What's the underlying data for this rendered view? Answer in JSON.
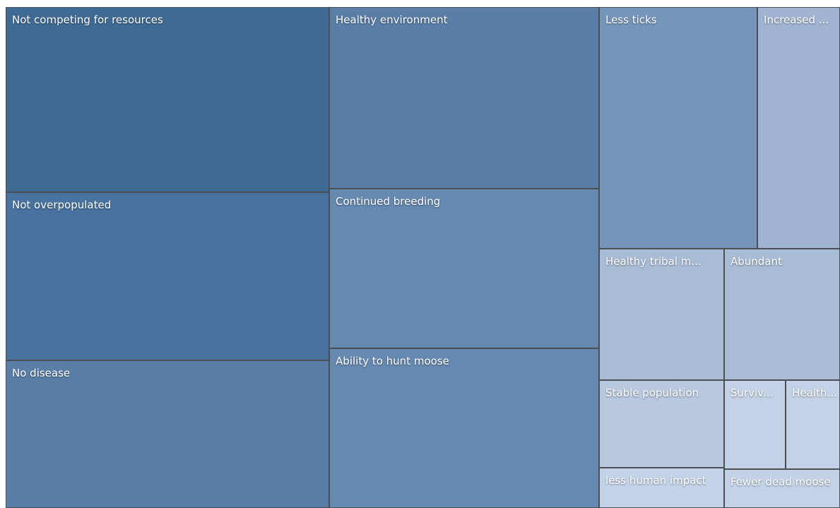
{
  "chart_data": {
    "type": "treemap",
    "categories": [
      "Not competing for resources",
      "Not overpopulated",
      "No disease",
      "Healthy environment",
      "Continued breeding",
      "Ability to hunt moose",
      "Less ticks",
      "Increased ...",
      "Healthy tribal m...",
      "Abundant",
      "Stable population",
      "less human impact",
      "Surviv...",
      "Health...",
      "Fewer dead moose"
    ],
    "values": [
      120000,
      109000,
      95700,
      98200,
      86300,
      86300,
      76600,
      40000,
      32900,
      30500,
      21900,
      10100,
      11000,
      9700,
      9000
    ],
    "colors": [
      "#3f6a94",
      "#4872a0",
      "#5a7ea8",
      "#5a7ea8",
      "#6689b1",
      "#6689b1",
      "#7695ba",
      "#a0b4d2",
      "#a9bcd6",
      "#a9bcd6",
      "#b8c8df",
      "#c3d2e6",
      "#c3d2e6",
      "#c3d2e6",
      "#c3d2e6"
    ]
  }
}
